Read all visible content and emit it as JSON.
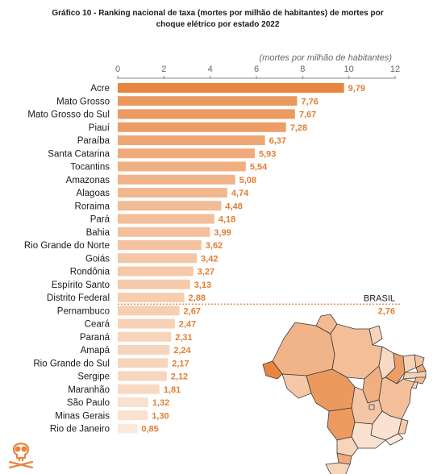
{
  "title": {
    "line1": "Gráfico 10 - Ranking nacional de taxa (mortes por milhão de habitantes) de mortes por",
    "line2": "choque elétrico por estado 2022"
  },
  "chart_data": {
    "type": "bar",
    "orientation": "horizontal",
    "unit_label": "(mortes por milhão de habitantes)",
    "xlim": [
      0,
      12
    ],
    "xticks": [
      "0",
      "2",
      "4",
      "6",
      "8",
      "10",
      "12"
    ],
    "grid": false,
    "categories": [
      "Acre",
      "Mato Grosso",
      "Mato Grosso do Sul",
      "Piauí",
      "Paraíba",
      "Santa Catarina",
      "Tocantins",
      "Amazonas",
      "Alagoas",
      "Roraima",
      "Pará",
      "Bahia",
      "Rio Grande do Norte",
      "Goiás",
      "Rondônia",
      "Espírito Santo",
      "Distrito Federal",
      "Pernambuco",
      "Ceará",
      "Paraná",
      "Amapá",
      "Rio Grande do Sul",
      "Sergipe",
      "Maranhão",
      "São Paulo",
      "Minas Gerais",
      "Rio de Janeiro"
    ],
    "values": [
      9.79,
      7.76,
      7.67,
      7.28,
      6.37,
      5.93,
      5.54,
      5.08,
      4.74,
      4.48,
      4.18,
      3.99,
      3.62,
      3.42,
      3.27,
      3.13,
      2.88,
      2.67,
      2.47,
      2.31,
      2.24,
      2.17,
      2.12,
      1.81,
      1.32,
      1.3,
      0.85
    ],
    "value_labels": [
      "9,79",
      "7,76",
      "7,67",
      "7,28",
      "6,37",
      "5,93",
      "5,54",
      "5,08",
      "4,74",
      "4,48",
      "4,18",
      "3,99",
      "3,62",
      "3,42",
      "3,27",
      "3,13",
      "2,88",
      "2,67",
      "2,47",
      "2,31",
      "2,24",
      "2,17",
      "2,12",
      "1,81",
      "1,32",
      "1,30",
      "0,85"
    ],
    "reference": {
      "name": "BRASIL",
      "value": 2.76,
      "label": "2,76"
    },
    "colors": {
      "bars_high": "#e8853f",
      "bars_low": "#fbe9dc",
      "value_text": "#e07f35",
      "category_text": "#1a1a1a",
      "axis": "#888888",
      "map_outline": "#3a3a3a"
    }
  },
  "map": {
    "name": "brazil-states-map",
    "fill_scale": [
      "#fbe9dc",
      "#e8853f"
    ]
  },
  "logo": {
    "icon": "skull-crossbones-icon",
    "color": "#e8853f"
  }
}
